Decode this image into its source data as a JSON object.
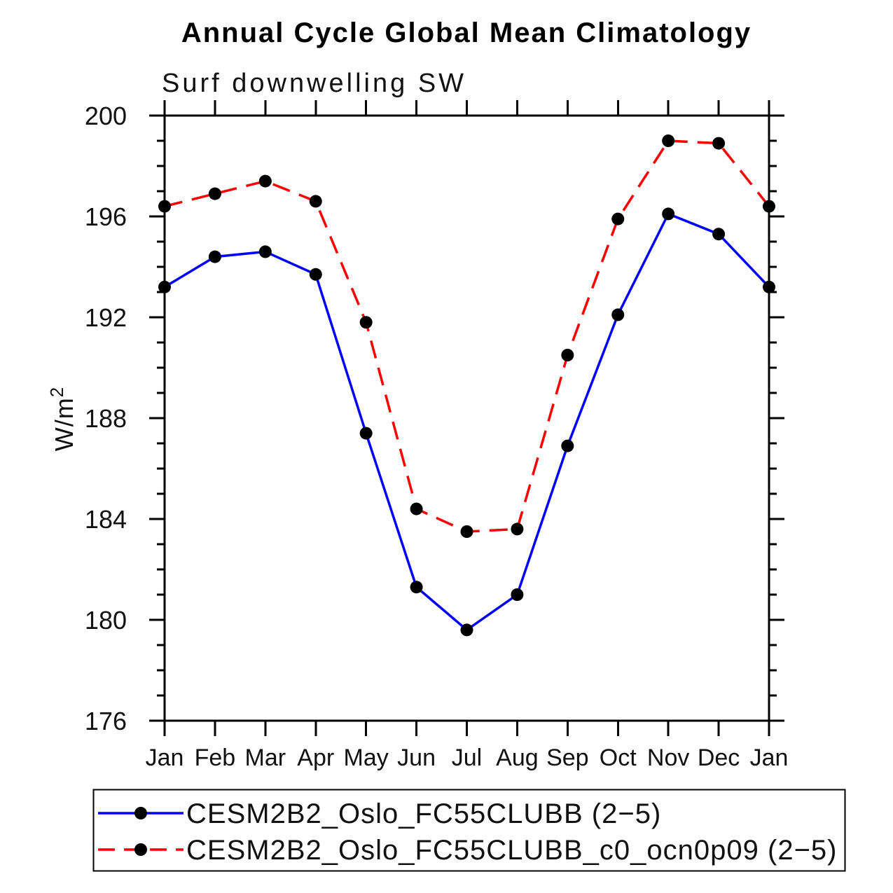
{
  "chart_data": {
    "type": "line",
    "title": "Annual Cycle Global Mean Climatology",
    "subtitle": "Surf downwelling SW",
    "ylabel": "W/m²",
    "ylim": [
      176,
      200
    ],
    "ytick_major": [
      176,
      180,
      184,
      188,
      192,
      196,
      200
    ],
    "ytick_minor_step": 1,
    "categories": [
      "Jan",
      "Feb",
      "Mar",
      "Apr",
      "May",
      "Jun",
      "Jul",
      "Aug",
      "Sep",
      "Oct",
      "Nov",
      "Dec",
      "Jan"
    ],
    "series": [
      {
        "name": "CESM2B2_Oslo_FC55CLUBB (2−5)",
        "color": "#0000ff",
        "line_style": "solid",
        "marker": "filled-circle",
        "marker_color": "#000000",
        "values": [
          193.2,
          194.4,
          194.6,
          193.7,
          187.4,
          181.3,
          179.6,
          181.0,
          186.9,
          192.1,
          196.1,
          195.3,
          193.2
        ]
      },
      {
        "name": "CESM2B2_Oslo_FC55CLUBB_c0_ocn0p09 (2−5)",
        "color": "#ff0000",
        "line_style": "dashed",
        "marker": "filled-circle",
        "marker_color": "#000000",
        "values": [
          196.4,
          196.9,
          197.4,
          196.6,
          191.8,
          184.4,
          183.5,
          183.6,
          190.5,
          195.9,
          199.0,
          198.9,
          196.4
        ]
      }
    ],
    "legend_position": "bottom",
    "grid": false
  }
}
